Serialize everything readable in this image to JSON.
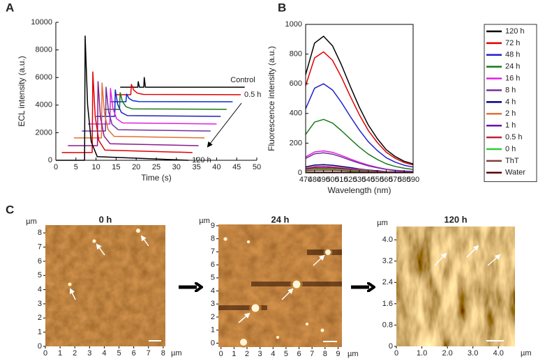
{
  "panel_labels": [
    "A",
    "B",
    "C"
  ],
  "chart_data": [
    {
      "type": "line",
      "x_label": "Time (s)",
      "y_label": "ECL intensity (a.u.)",
      "xlim": [
        0,
        50
      ],
      "ylim": [
        0,
        10000
      ],
      "xticks": [
        0,
        5,
        10,
        15,
        20,
        25,
        30,
        35,
        40,
        45,
        50
      ],
      "yticks": [
        0,
        2000,
        4000,
        6000,
        8000,
        10000
      ],
      "series": [
        {
          "name": "Control",
          "color": "#000000",
          "x": [
            16,
            20.4,
            20.5,
            20.8,
            21.9,
            22,
            22.3,
            47
          ],
          "values": [
            5300,
            5300,
            5700,
            5300,
            5300,
            6000,
            5300,
            5300
          ]
        },
        {
          "name": "0.5 h",
          "color": "#e00000",
          "x": [
            15,
            18.65,
            18.8,
            19.4,
            20.3,
            21.8,
            46
          ],
          "values": [
            4750,
            4750,
            5500,
            5088,
            4863,
            4773,
            4750
          ]
        },
        {
          "name": null,
          "color": "#0030d0",
          "x": [
            13.5,
            17.45,
            17.6,
            18.2,
            19.1,
            20.6,
            44
          ],
          "values": [
            4240,
            4240,
            4800,
            4492,
            4324,
            4257,
            4240
          ]
        },
        {
          "name": null,
          "color": "#1a7a1a",
          "x": [
            12,
            15.85,
            16,
            16.6,
            17.5,
            19,
            42.5
          ],
          "values": [
            3690,
            3690,
            4900,
            4235,
            3872,
            3726,
            3690
          ]
        },
        {
          "name": null,
          "color": "#2020c0",
          "x": [
            10,
            14.65,
            14.8,
            15.4,
            16.3,
            17.8,
            41
          ],
          "values": [
            3180,
            3180,
            5100,
            4044,
            3468,
            3238,
            3180
          ]
        },
        {
          "name": null,
          "color": "#e020e0",
          "x": [
            8,
            13.45,
            13.6,
            14.2,
            15.1,
            16.6,
            40
          ],
          "values": [
            2630,
            2630,
            5200,
            3787,
            3016,
            2707,
            2630
          ]
        },
        {
          "name": null,
          "color": "#7030a0",
          "x": [
            6.5,
            12.35,
            12.5,
            13.1,
            14,
            15.5,
            38.5
          ],
          "values": [
            2120,
            2120,
            5300,
            3551,
            2597,
            2215,
            2120
          ]
        },
        {
          "name": null,
          "color": "#e07030",
          "x": [
            4.5,
            11.35,
            11.5,
            12.1,
            13,
            14.5,
            37
          ],
          "values": [
            1620,
            1620,
            5600,
            3411,
            2217,
            1739,
            1620
          ]
        },
        {
          "name": null,
          "color": "#8b1a8b",
          "x": [
            3,
            10.35,
            10.5,
            11.1,
            12,
            13.5,
            35.5
          ],
          "values": [
            1060,
            1060,
            5700,
            3148,
            1756,
            1199,
            1060
          ]
        },
        {
          "name": null,
          "color": "#e00000",
          "x": [
            1.5,
            9.05,
            9.2,
            9.8,
            10.7,
            12.2,
            34
          ],
          "values": [
            560,
            560,
            6400,
            3188,
            1436,
            735,
            560
          ]
        },
        {
          "name": "120 h",
          "color": "#000000",
          "x": [
            0,
            7.15,
            7.3,
            7.9,
            8.8,
            10.3,
            33
          ],
          "values": [
            0,
            0,
            9000,
            4050,
            1350,
            270,
            0
          ]
        }
      ]
    },
    {
      "type": "line",
      "x_label": "Wavelength (nm)",
      "y_label": "Fluorescence intensity (a.u.)",
      "xlim": [
        470,
        590
      ],
      "ylim": [
        0,
        1000
      ],
      "xticks": [
        470,
        480,
        490,
        500,
        510,
        520,
        530,
        540,
        550,
        560,
        570,
        580,
        590
      ],
      "yticks": [
        0,
        200,
        400,
        600,
        800,
        1000
      ],
      "legend": "upper right",
      "x": [
        470,
        480,
        490,
        500,
        510,
        520,
        530,
        540,
        550,
        560,
        570,
        580,
        590
      ],
      "series": [
        {
          "name": "120 h",
          "color": "#000000",
          "values": [
            662,
            874,
            920,
            856,
            727,
            580,
            442,
            322,
            230,
            156,
            110,
            78,
            60
          ]
        },
        {
          "name": "72 h",
          "color": "#e00000",
          "values": [
            587,
            774,
            815,
            758,
            644,
            513,
            391,
            285,
            204,
            139,
            98,
            69,
            53
          ]
        },
        {
          "name": "48 h",
          "color": "#1f1fcf",
          "values": [
            432,
            570,
            600,
            558,
            474,
            378,
            288,
            210,
            150,
            102,
            72,
            51,
            39
          ]
        },
        {
          "name": "24 h",
          "color": "#1a7a1a",
          "values": [
            259,
            342,
            360,
            335,
            284,
            227,
            173,
            126,
            90,
            61,
            43,
            31,
            23
          ]
        },
        {
          "name": "16 h",
          "color": "#e020e0",
          "values": [
            107,
            141,
            148,
            138,
            117,
            93,
            71,
            52,
            37,
            25,
            18,
            13,
            10
          ]
        },
        {
          "name": "8 h",
          "color": "#7030a0",
          "values": [
            97,
            128,
            135,
            126,
            107,
            85,
            65,
            47,
            34,
            23,
            16,
            11,
            9
          ]
        },
        {
          "name": "4 h",
          "color": "#00008b",
          "values": [
            40,
            52,
            55,
            51,
            43,
            35,
            26,
            19,
            14,
            9,
            7,
            5,
            4
          ]
        },
        {
          "name": "2 h",
          "color": "#e07040",
          "values": [
            32,
            43,
            45,
            42,
            36,
            28,
            22,
            16,
            11,
            8,
            5,
            4,
            3
          ]
        },
        {
          "name": "1 h",
          "color": "#6a0dad",
          "values": [
            27,
            36,
            38,
            35,
            30,
            24,
            18,
            13,
            10,
            6,
            5,
            3,
            2
          ]
        },
        {
          "name": "0.5 h",
          "color": "#c0203a",
          "values": [
            22,
            29,
            30,
            28,
            24,
            19,
            14,
            11,
            8,
            5,
            4,
            3,
            2
          ]
        },
        {
          "name": "0 h",
          "color": "#33cc33",
          "values": [
            18,
            24,
            25,
            23,
            20,
            16,
            12,
            9,
            6,
            4,
            3,
            2,
            2
          ]
        },
        {
          "name": "ThT",
          "color": "#7b3f3f",
          "values": [
            13,
            17,
            18,
            17,
            14,
            11,
            9,
            6,
            5,
            3,
            2,
            2,
            1
          ]
        },
        {
          "name": "Water",
          "color": "#5a0000",
          "values": [
            3,
            4,
            4,
            4,
            3,
            3,
            2,
            2,
            2,
            1,
            1,
            1,
            1
          ]
        }
      ]
    },
    {
      "type": "image",
      "title": "0 h",
      "x_label": "µm",
      "y_label": "µm",
      "xlim": [
        0,
        8.15
      ],
      "ylim": [
        0,
        8.55
      ],
      "xticks": [
        0,
        1,
        2,
        3,
        4,
        5,
        6,
        7,
        8
      ],
      "yticks": [
        0,
        1,
        2,
        3,
        4,
        5,
        6,
        7,
        8
      ]
    },
    {
      "type": "image",
      "title": "24 h",
      "x_label": "µm",
      "y_label": "µm",
      "xlim": [
        -0.2,
        9.3
      ],
      "ylim": [
        -0.3,
        9.1
      ],
      "xticks": [
        0,
        1,
        2,
        3,
        4,
        5,
        6,
        7,
        8,
        9
      ],
      "yticks": [
        0,
        1,
        2,
        3,
        4,
        5,
        6,
        7,
        8,
        9
      ]
    },
    {
      "type": "image",
      "title": "120 h",
      "x_label": "µm",
      "y_label": "µm",
      "xlim": [
        0,
        4.65
      ],
      "ylim": [
        0,
        4.5
      ],
      "xticks": [
        0,
        {
          "value": 1,
          "label": "1.0"
        },
        {
          "value": 2,
          "label": "2.0"
        },
        {
          "value": 3,
          "label": "3.0"
        },
        {
          "value": 4,
          "label": "4.0"
        }
      ],
      "yticks": [
        0,
        0.8,
        1.6,
        2.4,
        3.2,
        {
          "value": 4,
          "label": "4.0"
        }
      ]
    }
  ]
}
